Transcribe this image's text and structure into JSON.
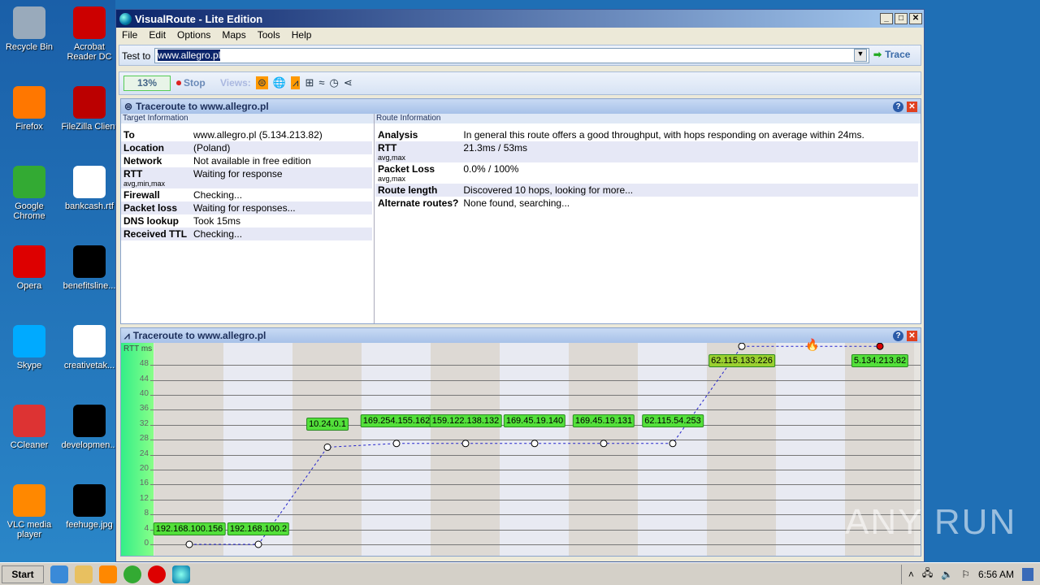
{
  "desktop": {
    "icons": [
      {
        "label": "Recycle Bin",
        "color": "#9ab"
      },
      {
        "label": "Acrobat Reader DC",
        "color": "#c00"
      },
      {
        "label": "Firefox",
        "color": "#f70"
      },
      {
        "label": "FileZilla Client",
        "color": "#b00"
      },
      {
        "label": "Google Chrome",
        "color": "#3a3"
      },
      {
        "label": "bankcash.rtf",
        "color": "#fff"
      },
      {
        "label": "Opera",
        "color": "#d00"
      },
      {
        "label": "benefitsline...",
        "color": "#000"
      },
      {
        "label": "Skype",
        "color": "#0af"
      },
      {
        "label": "creativetak...",
        "color": "#fff"
      },
      {
        "label": "CCleaner",
        "color": "#d33"
      },
      {
        "label": "developmen...",
        "color": "#000"
      },
      {
        "label": "VLC media player",
        "color": "#f80"
      },
      {
        "label": "feehuge.jpg",
        "color": "#000"
      }
    ]
  },
  "window": {
    "title": "VisualRoute - Lite Edition",
    "menu": [
      "File",
      "Edit",
      "Options",
      "Maps",
      "Tools",
      "Help"
    ]
  },
  "testbar": {
    "label": "Test to",
    "value": "www.allegro.pl",
    "trace": "Trace"
  },
  "toolbar": {
    "progress": "13%",
    "progress_value": 13,
    "stop": "Stop",
    "views": "Views:"
  },
  "info_panel": {
    "title": "Traceroute to www.allegro.pl",
    "target_header": "Target Information",
    "route_header": "Route Information",
    "target": [
      {
        "k": "To",
        "sub": "",
        "v": "www.allegro.pl (5.134.213.82)"
      },
      {
        "k": "Location",
        "sub": "",
        "v": "(Poland)"
      },
      {
        "k": "Network",
        "sub": "",
        "v": "Not available in free edition"
      },
      {
        "k": "RTT",
        "sub": "avg,min,max",
        "v": "Waiting for response"
      },
      {
        "k": "Firewall",
        "sub": "",
        "v": "Checking..."
      },
      {
        "k": "Packet loss",
        "sub": "",
        "v": "Waiting for responses..."
      },
      {
        "k": "DNS lookup",
        "sub": "",
        "v": "Took 15ms"
      },
      {
        "k": "Received TTL",
        "sub": "",
        "v": "Checking..."
      }
    ],
    "route": [
      {
        "k": "Analysis",
        "sub": "",
        "v": "In general this route offers a good throughput, with hops responding on average within 24ms."
      },
      {
        "k": "RTT",
        "sub": "avg,max",
        "v": "21.3ms / 53ms"
      },
      {
        "k": "Packet Loss",
        "sub": "avg,max",
        "v": "0.0% / 100%"
      },
      {
        "k": "Route length",
        "sub": "",
        "v": "Discovered 10 hops, looking for more..."
      },
      {
        "k": "Alternate routes?",
        "sub": "",
        "v": "None found, searching..."
      }
    ]
  },
  "graph_panel": {
    "title": "Traceroute to www.allegro.pl"
  },
  "chart_data": {
    "type": "line",
    "ylabel": "RTT ms",
    "ylim": [
      0,
      52
    ],
    "yticks": [
      0,
      4,
      8,
      12,
      16,
      20,
      24,
      28,
      32,
      36,
      40,
      44,
      48
    ],
    "hops": [
      {
        "ip": "192.168.100.156",
        "rtt": 0
      },
      {
        "ip": "192.168.100.2",
        "rtt": 0
      },
      {
        "ip": "10.24.0.1",
        "rtt": 26
      },
      {
        "ip": "169.254.155.162",
        "rtt": 27
      },
      {
        "ip": "159.122.138.132",
        "rtt": 27
      },
      {
        "ip": "169.45.19.140",
        "rtt": 27
      },
      {
        "ip": "169.45.19.131",
        "rtt": 27
      },
      {
        "ip": "62.115.54.253",
        "rtt": 27
      },
      {
        "ip": "62.115.133.226",
        "rtt": 53
      },
      {
        "ip": "",
        "rtt": 53,
        "firewall": true
      },
      {
        "ip": "5.134.213.82",
        "rtt": 53,
        "destination": true
      }
    ]
  },
  "taskbar": {
    "start": "Start",
    "clock": "6:56 AM"
  },
  "watermark": "ANY RUN"
}
